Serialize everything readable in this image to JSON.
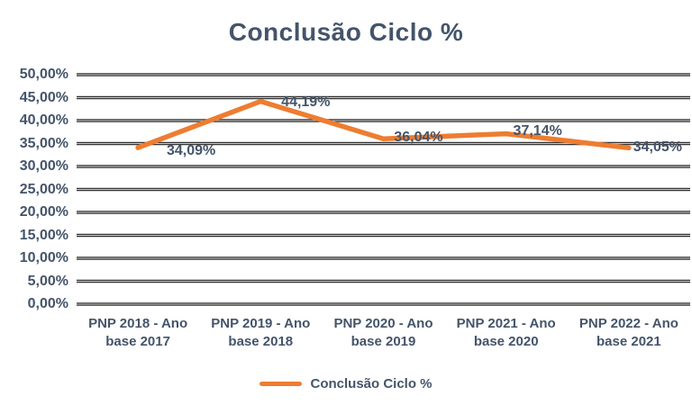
{
  "title": "Conclusão Ciclo %",
  "colors": {
    "accent_orange": "#ED7D31",
    "text_blue": "#44546A",
    "gridline": "#333333",
    "background": "#FFFFFF"
  },
  "legend": {
    "label": "Conclusão Ciclo %",
    "marker": "orange-line-swatch"
  },
  "chart_data": {
    "type": "line",
    "title": "Conclusão Ciclo %",
    "categories": [
      "PNP 2018 - Ano base 2017",
      "PNP 2019 - Ano base 2018",
      "PNP 2020 - Ano base 2019",
      "PNP 2021 - Ano base 2020",
      "PNP 2022 - Ano base 2021"
    ],
    "category_lines": [
      [
        "PNP 2018 - Ano",
        "base 2017"
      ],
      [
        "PNP 2019 - Ano",
        "base 2018"
      ],
      [
        "PNP 2020 - Ano",
        "base 2019"
      ],
      [
        "PNP 2021 - Ano",
        "base 2020"
      ],
      [
        "PNP 2022 - Ano",
        "base 2021"
      ]
    ],
    "series": [
      {
        "name": "Conclusão Ciclo %",
        "values": [
          34.09,
          44.19,
          36.04,
          37.14,
          34.05
        ],
        "data_labels": [
          "34,09%",
          "44,19%",
          "36,04%",
          "37,14%",
          "34,05%"
        ],
        "color": "#ED7D31"
      }
    ],
    "y_axis": {
      "min": 0,
      "max": 50,
      "step": 5,
      "tick_labels": [
        "0,00%",
        "5,00%",
        "10,00%",
        "15,00%",
        "20,00%",
        "25,00%",
        "30,00%",
        "35,00%",
        "40,00%",
        "45,00%",
        "50,00%"
      ]
    },
    "grid": true,
    "legend_position": "bottom"
  }
}
